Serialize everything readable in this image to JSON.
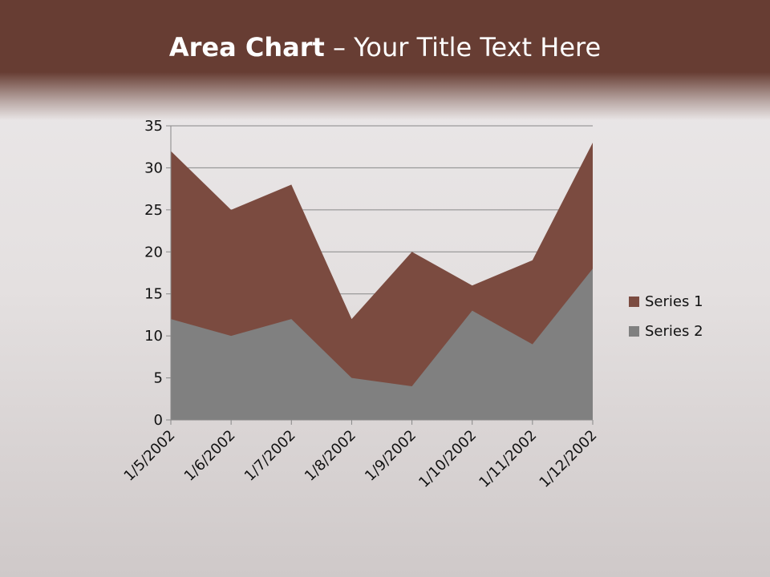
{
  "slide": {
    "title_bold": "Area Chart",
    "title_rest": " – Your Title Text Here"
  },
  "chart_data": {
    "type": "area",
    "categories": [
      "1/5/2002",
      "1/6/2002",
      "1/7/2002",
      "1/8/2002",
      "1/9/2002",
      "1/10/2002",
      "1/11/2002",
      "1/12/2002"
    ],
    "series": [
      {
        "name": "Series 1",
        "values": [
          32,
          25,
          28,
          12,
          20,
          16,
          19,
          33
        ],
        "color": "#7b4b40"
      },
      {
        "name": "Series 2",
        "values": [
          12,
          10,
          12,
          5,
          4,
          13,
          9,
          18
        ],
        "color": "#808080"
      }
    ],
    "ylim": [
      0,
      35
    ],
    "yticks": [
      0,
      5,
      10,
      15,
      20,
      25,
      30,
      35
    ],
    "grid": true,
    "legend": "right"
  }
}
